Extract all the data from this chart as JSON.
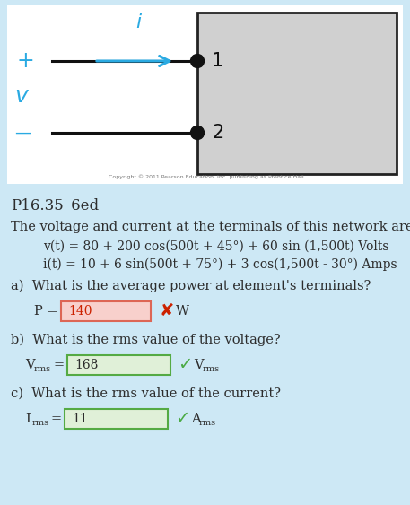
{
  "bg_color": "#cde8f5",
  "diagram_bg": "#ffffff",
  "box_bg": "#d0d0d0",
  "title": "P16.35_6ed",
  "line1": "The voltage and current at the terminals of this network are",
  "line2": "v(t) = 80 + 200 cos(500t + 45°) + 60 sin (1,500t) Volts",
  "line3": "i(t) = 10 + 6 sin(500t + 75°) + 3 cos(1,500t - 30°) Amps",
  "qa": "a)  What is the average power at element's terminals?",
  "pa_value": "140",
  "pa_unit": "W",
  "qb": "b)  What is the rms value of the voltage?",
  "pb_value": "168",
  "qc": "c)  What is the rms value of the current?",
  "pc_value": "11",
  "cyan_color": "#2aaae2",
  "dark_text": "#2d2d2d",
  "red_color": "#cc2200",
  "green_color": "#4aaa44",
  "answer_box_wrong_bg": "#f8d0cc",
  "answer_box_wrong_border": "#dd6655",
  "answer_box_correct_bg": "#e0f0d8",
  "answer_box_correct_border": "#55aa44",
  "figw": 4.57,
  "figh": 5.63,
  "dpi": 100
}
